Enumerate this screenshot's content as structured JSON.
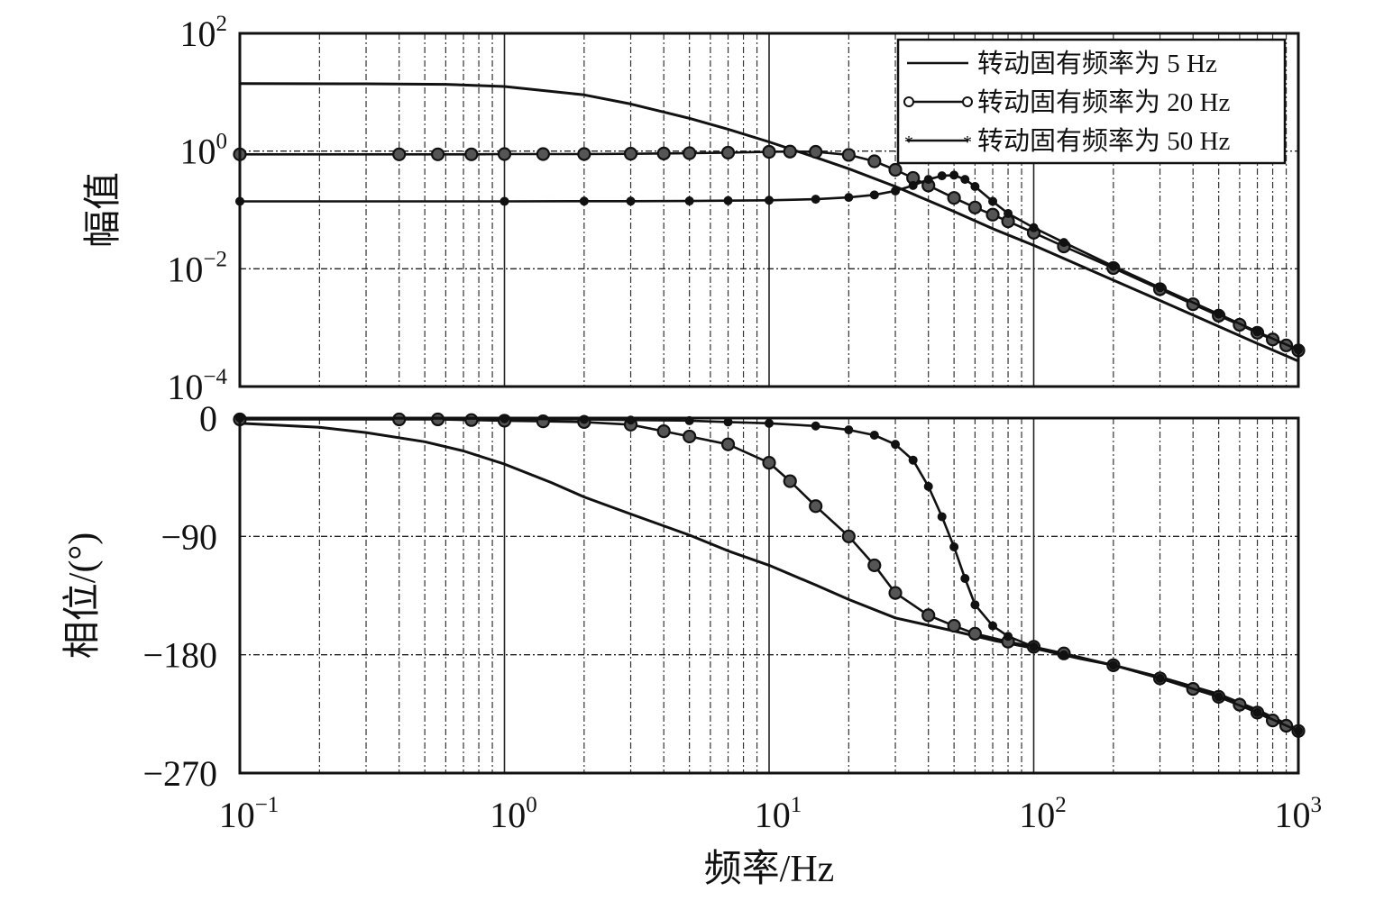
{
  "chart_data": [
    {
      "type": "line",
      "panel": "magnitude",
      "title": "",
      "xlabel": "",
      "ylabel": "幅值",
      "x_scale": "log",
      "y_scale": "log",
      "xlim": [
        0.1,
        1000
      ],
      "ylim": [
        0.0001,
        100
      ],
      "grid": true,
      "legend_position": "top-right",
      "y_ticks": [
        {
          "value": 100,
          "base": "10",
          "exp": "2"
        },
        {
          "value": 1,
          "base": "10",
          "exp": "0"
        },
        {
          "value": 0.01,
          "base": "10",
          "exp": "−2"
        },
        {
          "value": 0.0001,
          "base": "10",
          "exp": "−4"
        }
      ],
      "series": [
        {
          "name": "转动固有频率为 5 Hz",
          "marker": "none",
          "x": [
            0.1,
            0.3,
            0.6,
            1,
            2,
            3,
            5,
            7,
            10,
            15,
            20,
            30,
            50,
            70,
            100,
            200,
            300,
            500,
            700,
            1000
          ],
          "y": [
            14,
            13.9,
            13.6,
            12.5,
            9,
            6.3,
            3.6,
            2.35,
            1.43,
            0.78,
            0.5,
            0.25,
            0.094,
            0.048,
            0.025,
            0.0064,
            0.0029,
            0.00105,
            0.00054,
            0.00027
          ]
        },
        {
          "name": "转动固有频率为 20 Hz",
          "marker": "circle",
          "x": [
            0.1,
            0.4,
            0.56,
            0.75,
            1,
            1.4,
            2,
            3,
            4,
            5,
            7,
            10,
            12,
            15,
            20,
            25,
            30,
            35,
            40,
            50,
            60,
            70,
            80,
            100,
            130,
            200,
            300,
            400,
            500,
            600,
            700,
            800,
            900,
            1000
          ],
          "y": [
            0.88,
            0.88,
            0.88,
            0.88,
            0.89,
            0.89,
            0.89,
            0.9,
            0.91,
            0.92,
            0.94,
            0.97,
            0.98,
            0.97,
            0.86,
            0.67,
            0.48,
            0.35,
            0.26,
            0.16,
            0.11,
            0.083,
            0.064,
            0.041,
            0.024,
            0.0103,
            0.0045,
            0.0025,
            0.0016,
            0.00112,
            0.00082,
            0.00063,
            0.0005,
            0.00041
          ]
        },
        {
          "name": "转动固有频率为 50 Hz",
          "marker": "asterisk",
          "x": [
            0.1,
            1,
            2,
            3,
            5,
            7,
            10,
            15,
            20,
            25,
            30,
            35,
            40,
            45,
            50,
            55,
            60,
            70,
            80,
            100,
            130,
            200,
            300,
            500,
            700,
            1000
          ],
          "y": [
            0.14,
            0.14,
            0.141,
            0.141,
            0.142,
            0.144,
            0.146,
            0.152,
            0.163,
            0.18,
            0.21,
            0.26,
            0.33,
            0.38,
            0.39,
            0.33,
            0.25,
            0.14,
            0.087,
            0.05,
            0.028,
            0.011,
            0.0048,
            0.0017,
            0.00085,
            0.00042
          ]
        }
      ]
    },
    {
      "type": "line",
      "panel": "phase",
      "title": "",
      "xlabel": "频率/Hz",
      "ylabel": "相位/(°)",
      "x_scale": "log",
      "xlim": [
        0.1,
        1000
      ],
      "ylim": [
        -270,
        0
      ],
      "grid": true,
      "x_ticks": [
        {
          "value": 0.1,
          "base": "10",
          "exp": "−1"
        },
        {
          "value": 1,
          "base": "10",
          "exp": "0"
        },
        {
          "value": 10,
          "base": "10",
          "exp": "1"
        },
        {
          "value": 100,
          "base": "10",
          "exp": "2"
        },
        {
          "value": 1000,
          "base": "10",
          "exp": "3"
        }
      ],
      "y_ticks": [
        {
          "value": 0,
          "label": "0"
        },
        {
          "value": -90,
          "label": "−90"
        },
        {
          "value": -180,
          "label": "−180"
        },
        {
          "value": -270,
          "label": "−270"
        }
      ],
      "series": [
        {
          "name": "转动固有频率为 5 Hz",
          "marker": "none",
          "x": [
            0.1,
            0.2,
            0.3,
            0.5,
            0.7,
            1,
            1.5,
            2,
            3,
            5,
            7,
            10,
            15,
            20,
            30,
            50,
            70,
            100,
            150,
            200,
            300,
            500,
            700,
            1000
          ],
          "y": [
            -4,
            -7,
            -11,
            -18,
            -25,
            -35,
            -49,
            -60,
            -73,
            -89,
            -101,
            -112,
            -127,
            -138,
            -152,
            -162,
            -169,
            -175,
            -183,
            -188,
            -197,
            -210,
            -222,
            -237
          ]
        },
        {
          "name": "转动固有频率为 20 Hz",
          "marker": "circle",
          "x": [
            0.1,
            0.4,
            0.56,
            0.75,
            1,
            1.4,
            2,
            3,
            4,
            5,
            7,
            10,
            12,
            15,
            20,
            25,
            30,
            40,
            50,
            60,
            80,
            100,
            130,
            200,
            300,
            400,
            500,
            600,
            700,
            800,
            900,
            1000
          ],
          "y": [
            -1,
            -1,
            -1,
            -1.5,
            -2,
            -2.5,
            -3,
            -5,
            -10,
            -14,
            -20,
            -34,
            -48,
            -67,
            -90,
            -112,
            -133,
            -150,
            -158,
            -164,
            -170,
            -174,
            -179,
            -188,
            -198,
            -206,
            -212,
            -218,
            -224,
            -230,
            -234,
            -238
          ]
        },
        {
          "name": "转动固有频率为 50 Hz",
          "marker": "asterisk",
          "x": [
            0.1,
            1,
            2,
            3,
            5,
            7,
            10,
            15,
            20,
            25,
            30,
            35,
            40,
            45,
            50,
            55,
            60,
            70,
            80,
            100,
            130,
            200,
            300,
            500,
            700,
            1000
          ],
          "y": [
            0,
            -0.5,
            -1,
            -1.5,
            -2,
            -3,
            -4,
            -6,
            -9,
            -13,
            -20,
            -32,
            -52,
            -75,
            -98,
            -122,
            -142,
            -158,
            -166,
            -174,
            -180,
            -188,
            -198,
            -212,
            -224,
            -238
          ]
        }
      ]
    }
  ]
}
